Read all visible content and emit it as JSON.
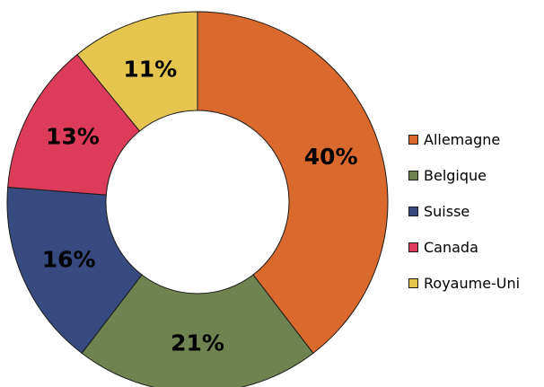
{
  "chart_data": {
    "type": "pie",
    "variant": "donut",
    "title": "",
    "categories": [
      "Allemagne",
      "Belgique",
      "Suisse",
      "Canada",
      "Royaume-Uni"
    ],
    "values": [
      40,
      21,
      16,
      13,
      11
    ],
    "labels": [
      "40%",
      "21%",
      "16%",
      "13%",
      "11%"
    ],
    "colors": [
      "#D9692C",
      "#6E8350",
      "#374B80",
      "#DC3C59",
      "#E5C450"
    ],
    "start_angle": "12 o'clock",
    "direction": "clockwise",
    "legend": "right"
  }
}
